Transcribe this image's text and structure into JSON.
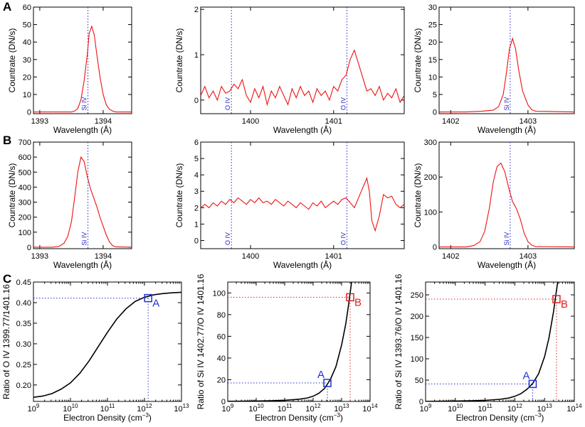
{
  "figure": {
    "panel_labels": [
      "A",
      "B",
      "C"
    ],
    "colors": {
      "spectrum": "#ee1111",
      "ref_line": "#2222cc",
      "curve": "#000000",
      "point_a": "#2233cc",
      "point_b": "#dd2222"
    }
  },
  "chart_data": [
    {
      "id": "A1",
      "type": "line",
      "panel": "A",
      "xlabel": "Wavelength (Å)",
      "ylabel": "Countrate (DN/s)",
      "xlim": [
        1392.9,
        1394.45
      ],
      "ylim": [
        -1,
        60
      ],
      "xticks": [
        1393,
        1394
      ],
      "yticks": [
        0,
        10,
        20,
        30,
        40,
        50,
        60
      ],
      "ref_lines": [
        {
          "x": 1393.76,
          "label": "Si IV"
        }
      ],
      "series": [
        {
          "x": [
            1392.9,
            1393.5,
            1393.55,
            1393.6,
            1393.65,
            1393.7,
            1393.75,
            1393.78,
            1393.82,
            1393.86,
            1393.9,
            1393.95,
            1394.0,
            1394.05,
            1394.1,
            1394.15,
            1394.2,
            1394.45
          ],
          "y": [
            0,
            0,
            0.5,
            2,
            7,
            18,
            33,
            45,
            49,
            44,
            33,
            20,
            10,
            4,
            1.5,
            0.5,
            0,
            0
          ]
        }
      ]
    },
    {
      "id": "A2",
      "type": "line",
      "panel": "A",
      "xlabel": "Wavelength (Å)",
      "ylabel": "Countrate (DN/s)",
      "xlim": [
        1399.4,
        1401.85
      ],
      "ylim": [
        -0.3,
        2.05
      ],
      "xticks": [
        1400,
        1401
      ],
      "yticks": [
        0,
        1,
        2
      ],
      "ref_lines": [
        {
          "x": 1399.77,
          "label": "O IV"
        },
        {
          "x": 1401.16,
          "label": "O IV"
        }
      ],
      "series": [
        {
          "x": [
            1399.4,
            1399.45,
            1399.5,
            1399.55,
            1399.6,
            1399.65,
            1399.7,
            1399.75,
            1399.8,
            1399.85,
            1399.9,
            1399.95,
            1400.0,
            1400.05,
            1400.1,
            1400.15,
            1400.2,
            1400.25,
            1400.3,
            1400.35,
            1400.4,
            1400.45,
            1400.5,
            1400.55,
            1400.6,
            1400.65,
            1400.7,
            1400.75,
            1400.8,
            1400.85,
            1400.9,
            1400.95,
            1401.0,
            1401.05,
            1401.1,
            1401.15,
            1401.2,
            1401.25,
            1401.3,
            1401.35,
            1401.4,
            1401.45,
            1401.5,
            1401.55,
            1401.6,
            1401.65,
            1401.7,
            1401.75,
            1401.8,
            1401.85
          ],
          "y": [
            0.1,
            0.3,
            0.05,
            0.2,
            0.0,
            0.3,
            0.15,
            0.2,
            0.35,
            0.25,
            0.45,
            0.1,
            -0.05,
            0.25,
            0.05,
            0.3,
            -0.1,
            0.2,
            0.05,
            0.3,
            0.1,
            -0.1,
            0.25,
            0.05,
            0.3,
            0.1,
            0.2,
            -0.05,
            0.25,
            0.1,
            0.2,
            0.0,
            0.3,
            0.2,
            0.45,
            0.55,
            0.9,
            1.1,
            0.8,
            0.5,
            0.2,
            0.25,
            0.1,
            0.3,
            0.0,
            0.15,
            0.05,
            0.25,
            -0.05,
            0.1
          ]
        }
      ]
    },
    {
      "id": "A3",
      "type": "line",
      "panel": "A",
      "xlabel": "Wavelength (Å)",
      "ylabel": "Countrate (DN/s)",
      "xlim": [
        1401.85,
        1403.6
      ],
      "ylim": [
        -0.5,
        30
      ],
      "xticks": [
        1402,
        1403
      ],
      "yticks": [
        0,
        5,
        10,
        15,
        20,
        25,
        30
      ],
      "ref_lines": [
        {
          "x": 1402.77,
          "label": "Si IV"
        }
      ],
      "series": [
        {
          "x": [
            1401.85,
            1402.2,
            1402.4,
            1402.55,
            1402.62,
            1402.68,
            1402.72,
            1402.76,
            1402.8,
            1402.84,
            1402.88,
            1402.93,
            1403.0,
            1403.05,
            1403.1,
            1403.6
          ],
          "y": [
            0,
            0,
            0.2,
            0.5,
            1.5,
            5,
            11,
            18,
            21,
            18,
            12,
            6,
            2,
            0.6,
            0.2,
            0
          ]
        }
      ]
    },
    {
      "id": "B1",
      "type": "line",
      "panel": "B",
      "xlabel": "Wavelength (Å)",
      "ylabel": "Countrate (DN/s)",
      "xlim": [
        1392.9,
        1394.45
      ],
      "ylim": [
        -10,
        700
      ],
      "xticks": [
        1393,
        1394
      ],
      "yticks": [
        0,
        100,
        200,
        300,
        400,
        500,
        600,
        700
      ],
      "ref_lines": [
        {
          "x": 1393.76,
          "label": "Si IV"
        }
      ],
      "series": [
        {
          "x": [
            1392.9,
            1393.2,
            1393.3,
            1393.38,
            1393.44,
            1393.5,
            1393.55,
            1393.6,
            1393.65,
            1393.7,
            1393.75,
            1393.8,
            1393.85,
            1393.9,
            1393.95,
            1394.0,
            1394.05,
            1394.1,
            1394.15,
            1394.2,
            1394.45
          ],
          "y": [
            0,
            0,
            5,
            25,
            70,
            170,
            330,
            500,
            600,
            570,
            470,
            390,
            330,
            270,
            200,
            140,
            80,
            35,
            10,
            2,
            0
          ]
        }
      ]
    },
    {
      "id": "B2",
      "type": "line",
      "panel": "B",
      "xlabel": "Wavelength (Å)",
      "ylabel": "Countrate (DN/s)",
      "xlim": [
        1399.4,
        1401.85
      ],
      "ylim": [
        -0.5,
        6
      ],
      "xticks": [
        1400,
        1401
      ],
      "yticks": [
        0,
        1,
        2,
        3,
        4,
        5,
        6
      ],
      "ref_lines": [
        {
          "x": 1399.77,
          "label": "O IV"
        },
        {
          "x": 1401.16,
          "label": "O IV"
        }
      ],
      "series": [
        {
          "x": [
            1399.4,
            1399.45,
            1399.5,
            1399.55,
            1399.6,
            1399.65,
            1399.7,
            1399.75,
            1399.8,
            1399.85,
            1399.9,
            1399.95,
            1400.0,
            1400.05,
            1400.1,
            1400.15,
            1400.2,
            1400.25,
            1400.3,
            1400.35,
            1400.4,
            1400.45,
            1400.5,
            1400.55,
            1400.6,
            1400.65,
            1400.7,
            1400.75,
            1400.8,
            1400.85,
            1400.9,
            1400.95,
            1401.0,
            1401.05,
            1401.1,
            1401.15,
            1401.2,
            1401.25,
            1401.3,
            1401.35,
            1401.4,
            1401.43,
            1401.46,
            1401.5,
            1401.55,
            1401.6,
            1401.65,
            1401.7,
            1401.75,
            1401.8,
            1401.85
          ],
          "y": [
            2.0,
            2.2,
            2.0,
            2.3,
            2.1,
            2.4,
            2.2,
            2.5,
            2.3,
            2.6,
            2.4,
            2.2,
            2.5,
            2.3,
            2.6,
            2.3,
            2.4,
            2.2,
            2.5,
            2.3,
            2.1,
            2.4,
            2.2,
            2.0,
            2.3,
            2.1,
            1.9,
            2.3,
            2.1,
            2.4,
            2.0,
            2.2,
            2.4,
            2.2,
            2.5,
            2.6,
            2.3,
            2.0,
            2.6,
            3.2,
            3.8,
            3.0,
            1.2,
            0.6,
            1.5,
            2.8,
            2.6,
            2.7,
            2.2,
            2.0,
            2.2
          ]
        }
      ]
    },
    {
      "id": "B3",
      "type": "line",
      "panel": "B",
      "xlabel": "Wavelength (Å)",
      "ylabel": "Countrate (DN/s)",
      "xlim": [
        1401.85,
        1403.6
      ],
      "ylim": [
        -5,
        300
      ],
      "xticks": [
        1402,
        1403
      ],
      "yticks": [
        0,
        100,
        200,
        300
      ],
      "ref_lines": [
        {
          "x": 1402.77,
          "label": "Si IV"
        }
      ],
      "series": [
        {
          "x": [
            1401.85,
            1402.2,
            1402.3,
            1402.38,
            1402.44,
            1402.5,
            1402.55,
            1402.6,
            1402.65,
            1402.7,
            1402.75,
            1402.8,
            1402.85,
            1402.9,
            1402.95,
            1403.0,
            1403.05,
            1403.1,
            1403.6
          ],
          "y": [
            0,
            0,
            4,
            15,
            45,
            110,
            185,
            230,
            240,
            215,
            170,
            130,
            110,
            80,
            40,
            15,
            5,
            1,
            0
          ]
        }
      ]
    },
    {
      "id": "C1",
      "type": "line",
      "panel": "C",
      "xscale": "log",
      "xlabel": "Electron Density (cm",
      "xlabel_sup": "−3",
      "xlabel_tail": ")",
      "ylabel": "Ratio of O IV 1399.77/1401.16",
      "xlim": [
        9,
        13
      ],
      "ylim": [
        0.16,
        0.45
      ],
      "xticks": [
        9,
        10,
        11,
        12,
        13
      ],
      "xtick_base": "10",
      "yticks": [
        0.2,
        0.25,
        0.3,
        0.35,
        0.4,
        0.45
      ],
      "ytick_labels": [
        "0.20",
        "0.25",
        "0.30",
        "0.35",
        "0.40",
        "0.45"
      ],
      "series": [
        {
          "x": [
            9,
            9.25,
            9.5,
            9.75,
            10,
            10.25,
            10.5,
            10.75,
            11,
            11.25,
            11.5,
            11.75,
            12,
            12.25,
            12.5,
            12.75,
            13
          ],
          "y": [
            0.17,
            0.173,
            0.179,
            0.19,
            0.205,
            0.228,
            0.258,
            0.293,
            0.328,
            0.36,
            0.385,
            0.403,
            0.413,
            0.419,
            0.422,
            0.424,
            0.425
          ]
        }
      ],
      "markers": [
        {
          "label": "A",
          "x": 12.1,
          "y": 0.411,
          "color": "#2233cc"
        }
      ]
    },
    {
      "id": "C2",
      "type": "line",
      "panel": "C",
      "xscale": "log",
      "xlabel": "Electron Density (cm",
      "xlabel_sup": "−3",
      "xlabel_tail": ")",
      "ylabel": "Ratio of Si IV 1402.77/O IV 1401.16",
      "xlim": [
        9,
        14
      ],
      "ylim": [
        0,
        110
      ],
      "xticks": [
        9,
        10,
        11,
        12,
        13,
        14
      ],
      "xtick_base": "10",
      "yticks": [
        0,
        20,
        40,
        60,
        80,
        100
      ],
      "series": [
        {
          "x": [
            9,
            9.5,
            10,
            10.5,
            11,
            11.5,
            11.8,
            12,
            12.2,
            12.4,
            12.6,
            12.8,
            13,
            13.15,
            13.25,
            13.35
          ],
          "y": [
            0.1,
            0.2,
            0.35,
            0.6,
            1.0,
            2.0,
            3.2,
            4.8,
            7.5,
            12,
            20,
            32,
            52,
            72,
            90,
            110
          ]
        }
      ],
      "markers": [
        {
          "label": "A",
          "x": 12.5,
          "y": 17,
          "color": "#2233cc"
        },
        {
          "label": "B",
          "x": 13.3,
          "y": 96,
          "color": "#dd2222"
        }
      ]
    },
    {
      "id": "C3",
      "type": "line",
      "panel": "C",
      "xscale": "log",
      "xlabel": "Electron Density (cm",
      "xlabel_sup": "−3",
      "xlabel_tail": ")",
      "ylabel": "Ratio of Si IV 1393.76/O IV 1401.16",
      "xlim": [
        9,
        14
      ],
      "ylim": [
        0,
        280
      ],
      "xticks": [
        9,
        10,
        11,
        12,
        13,
        14
      ],
      "xtick_base": "10",
      "yticks": [
        0,
        50,
        100,
        150,
        200,
        250
      ],
      "series": [
        {
          "x": [
            9,
            9.5,
            10,
            10.5,
            11,
            11.5,
            11.8,
            12,
            12.2,
            12.4,
            12.6,
            12.8,
            13,
            13.15,
            13.3,
            13.45
          ],
          "y": [
            0.2,
            0.5,
            0.9,
            1.5,
            2.5,
            5,
            8,
            12,
            18,
            28,
            42,
            65,
            105,
            150,
            210,
            285
          ]
        }
      ],
      "markers": [
        {
          "label": "A",
          "x": 12.6,
          "y": 41,
          "color": "#2233cc"
        },
        {
          "label": "B",
          "x": 13.4,
          "y": 240,
          "color": "#dd2222"
        }
      ]
    }
  ]
}
